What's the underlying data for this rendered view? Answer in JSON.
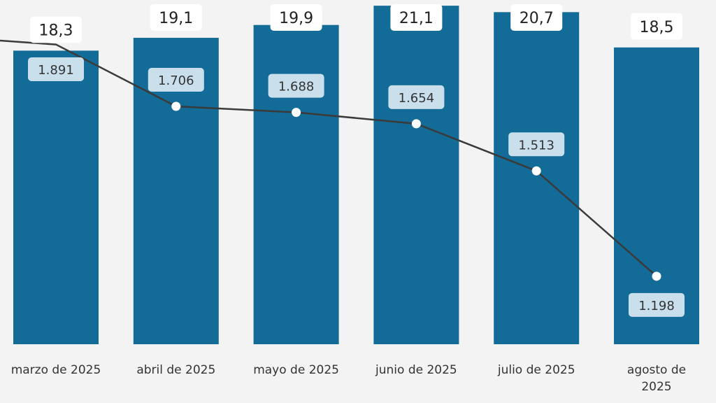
{
  "chart_data": {
    "type": "bar+line",
    "categories": [
      "marzo de 2025",
      "abril de 2025",
      "mayo de 2025",
      "junio de 2025",
      "julio de 2025",
      "agosto de 2025"
    ],
    "series": [
      {
        "type": "bar",
        "values": [
          18.3,
          19.1,
          19.9,
          21.1,
          20.7,
          18.5
        ],
        "labels": [
          "18,3",
          "19,1",
          "19,9",
          "21,1",
          "20,7",
          "18,5"
        ],
        "color": "#136b98"
      },
      {
        "type": "line",
        "values": [
          1891,
          1706,
          1688,
          1654,
          1513,
          1198
        ],
        "labels": [
          "1.891",
          "1.706",
          "1.688",
          "1.654",
          "1.513",
          "1.198"
        ],
        "color": "#3a3a3a"
      }
    ],
    "label_box_bar_color": "#ffffff",
    "label_box_line_color": "#c9dfec",
    "grid": false,
    "legend": "none"
  }
}
